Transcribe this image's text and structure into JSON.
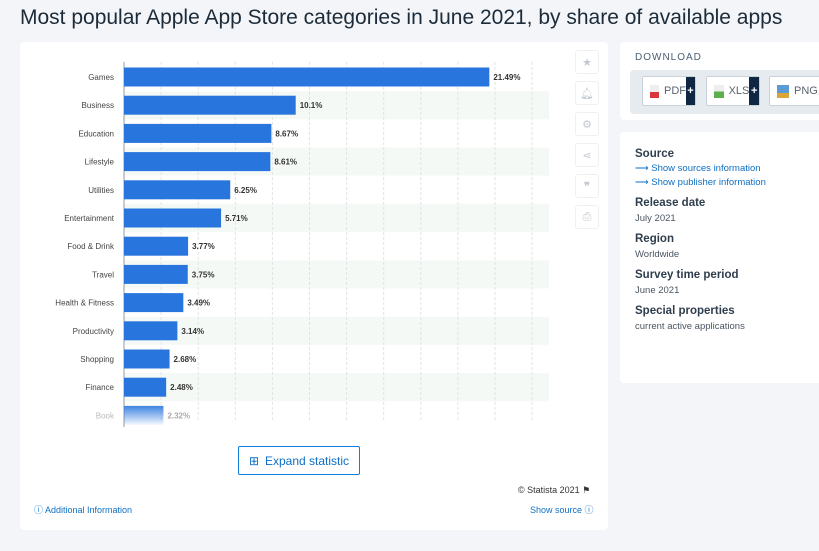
{
  "title": "Most popular Apple App Store categories in June 2021, by share of available apps",
  "chart_data": {
    "type": "bar",
    "orientation": "horizontal",
    "categories": [
      "Games",
      "Business",
      "Education",
      "Lifestyle",
      "Utilities",
      "Entertainment",
      "Food & Drink",
      "Travel",
      "Health & Fitness",
      "Productivity",
      "Shopping",
      "Finance",
      "Book"
    ],
    "values": [
      21.49,
      10.1,
      8.67,
      8.61,
      6.25,
      5.71,
      3.77,
      3.75,
      3.49,
      3.14,
      2.68,
      2.48,
      2.32
    ],
    "data_labels": [
      "21.49%",
      "10.1%",
      "8.67%",
      "8.61%",
      "6.25%",
      "5.71%",
      "3.77%",
      "3.75%",
      "3.49%",
      "3.14%",
      "2.68%",
      "2.48%",
      "2.32%"
    ],
    "grid": true,
    "bar_color": "#2876dd"
  },
  "toolbar": [
    "star-icon",
    "bell-icon",
    "gear-icon",
    "share-icon",
    "quote-icon",
    "print-icon"
  ],
  "expand_label": "Expand statistic",
  "copyright": "© Statista 2021",
  "additional_info": "Additional Information",
  "show_source": "Show source",
  "download": {
    "heading": "DOWNLOAD",
    "buttons": [
      "PDF",
      "XLS",
      "PNG"
    ],
    "plus": "+"
  },
  "info": {
    "source_label": "Source",
    "sources_link": "Show sources information",
    "publisher_link": "Show publisher information",
    "release_label": "Release date",
    "release": "July 2021",
    "region_label": "Region",
    "region": "Worldwide",
    "period_label": "Survey time period",
    "period": "June 2021",
    "special_label": "Special properties",
    "special": "current active applications"
  }
}
